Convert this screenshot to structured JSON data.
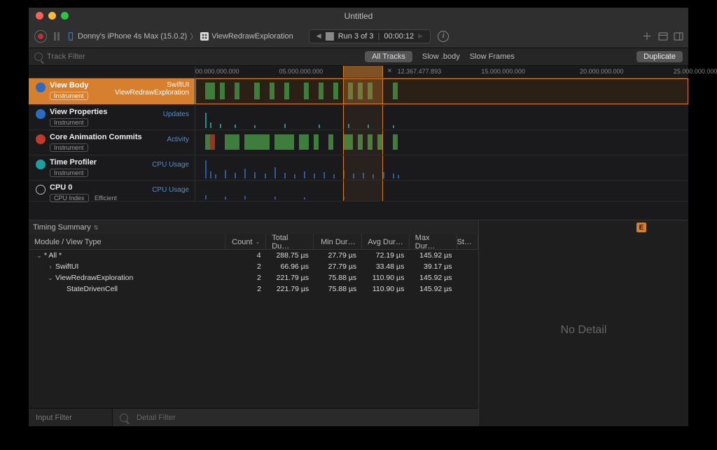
{
  "colors": {
    "window_bg": "#1e1e1e",
    "toolbar_bg": "#2f2f2f",
    "accent": "#d67f2e",
    "link": "#4a90d9",
    "green_bar": "#3f7d3c",
    "blue_spike": "#2e5b9c",
    "teal_spike": "#2e8b8b",
    "traffic_red": "#ff5f57",
    "traffic_yellow": "#febc2e",
    "traffic_green": "#28c840",
    "badge_blue": "#2a6cc4",
    "badge_red": "#c0392b",
    "badge_cyan": "#1aa0a0",
    "badge_white_border": "#bbb"
  },
  "title": "Untitled",
  "breadcrumb": {
    "device": "Donny's iPhone 4s Max (15.0.2)",
    "target": "ViewRedrawExploration"
  },
  "run_pill": {
    "label": "Run 3 of 3",
    "time": "00:00:12"
  },
  "track_filter_placeholder": "Track Filter",
  "segments": {
    "all_tracks": "All Tracks",
    "slow_body": "Slow .body",
    "slow_frames": "Slow Frames"
  },
  "duplicate_label": "Duplicate",
  "ruler": {
    "ticks": [
      {
        "pos_pct": 0,
        "label": "00.000.000.000"
      },
      {
        "pos_pct": 17,
        "label": "05.000.000.000"
      },
      {
        "pos_pct": 41,
        "label": "12.367.477.893"
      },
      {
        "pos_pct": 58,
        "label": "15.000.000.000"
      },
      {
        "pos_pct": 78,
        "label": "20.000.000.000"
      },
      {
        "pos_pct": 97,
        "label": "25.000.000.000"
      }
    ],
    "selection": {
      "left_pct": 30,
      "right_pct": 38
    },
    "close_pos_pct": 39
  },
  "tracks": [
    {
      "id": "view-body",
      "badge_color": "#2a6cc4",
      "title": "View Body",
      "pill": "Instrument",
      "right_top": "SwiftUI",
      "right_bottom": "ViewRedrawExploration",
      "right_bottom_link": false,
      "selected": true,
      "height": 38,
      "bars": [
        {
          "x": 2,
          "w": 2,
          "c": "#3f7d3c"
        },
        {
          "x": 5,
          "w": 1,
          "c": "#3f7d3c"
        },
        {
          "x": 8,
          "w": 1,
          "c": "#3f7d3c"
        },
        {
          "x": 12,
          "w": 1,
          "c": "#3f7d3c"
        },
        {
          "x": 15,
          "w": 1,
          "c": "#3f7d3c"
        },
        {
          "x": 18,
          "w": 1,
          "c": "#3f7d3c"
        },
        {
          "x": 22,
          "w": 1,
          "c": "#3f7d3c"
        },
        {
          "x": 25,
          "w": 1,
          "c": "#3f7d3c"
        },
        {
          "x": 28,
          "w": 1,
          "c": "#3f7d3c"
        },
        {
          "x": 31,
          "w": 1,
          "c": "#3f7d3c"
        },
        {
          "x": 33,
          "w": 1,
          "c": "#3f7d3c"
        },
        {
          "x": 35,
          "w": 1,
          "c": "#3f7d3c"
        },
        {
          "x": 40,
          "w": 1,
          "c": "#3f7d3c"
        }
      ],
      "spikes": []
    },
    {
      "id": "view-properties",
      "badge_color": "#2a6cc4",
      "title": "View Properties",
      "pill": "Instrument",
      "right_top": "",
      "right_bottom": "Updates",
      "right_bottom_link": true,
      "selected": false,
      "height": 36,
      "bars": [],
      "spikes": [
        {
          "x": 2,
          "h": 22,
          "c": "#2e8b8b"
        },
        {
          "x": 3,
          "h": 8,
          "c": "#2e8b8b"
        },
        {
          "x": 5,
          "h": 6,
          "c": "#2e8b8b"
        },
        {
          "x": 8,
          "h": 5,
          "c": "#2e8b8b"
        },
        {
          "x": 12,
          "h": 4,
          "c": "#2e8b8b"
        },
        {
          "x": 18,
          "h": 6,
          "c": "#2e8b8b"
        },
        {
          "x": 25,
          "h": 5,
          "c": "#2e8b8b"
        },
        {
          "x": 31,
          "h": 6,
          "c": "#2e8b8b"
        },
        {
          "x": 35,
          "h": 5,
          "c": "#2e8b8b"
        },
        {
          "x": 40,
          "h": 4,
          "c": "#2e8b8b"
        }
      ]
    },
    {
      "id": "core-animation",
      "badge_color": "#c0392b",
      "title": "Core Animation Commits",
      "pill": "Instrument",
      "right_top": "",
      "right_bottom": "Activity",
      "right_bottom_link": true,
      "selected": false,
      "height": 36,
      "bars": [
        {
          "x": 2,
          "w": 1,
          "c": "#3f7d3c"
        },
        {
          "x": 3,
          "w": 1,
          "c": "#8a3a2a"
        },
        {
          "x": 6,
          "w": 3,
          "c": "#3f7d3c"
        },
        {
          "x": 10,
          "w": 5,
          "c": "#3f7d3c"
        },
        {
          "x": 16,
          "w": 4,
          "c": "#3f7d3c"
        },
        {
          "x": 21,
          "w": 2,
          "c": "#3f7d3c"
        },
        {
          "x": 24,
          "w": 1,
          "c": "#3f7d3c"
        },
        {
          "x": 27,
          "w": 1,
          "c": "#3f7d3c"
        },
        {
          "x": 30,
          "w": 2,
          "c": "#3f7d3c"
        },
        {
          "x": 33,
          "w": 1,
          "c": "#3f7d3c"
        },
        {
          "x": 35,
          "w": 1,
          "c": "#3f7d3c"
        },
        {
          "x": 37,
          "w": 1,
          "c": "#3f7d3c"
        },
        {
          "x": 40,
          "w": 1,
          "c": "#3f7d3c"
        }
      ],
      "spikes": []
    },
    {
      "id": "time-profiler",
      "badge_color": "#1aa0a0",
      "title": "Time Profiler",
      "pill": "Instrument",
      "right_top": "",
      "right_bottom": "CPU Usage",
      "right_bottom_link": true,
      "selected": false,
      "height": 36,
      "bars": [],
      "spikes": [
        {
          "x": 2,
          "h": 26,
          "c": "#2e5b9c"
        },
        {
          "x": 3,
          "h": 10,
          "c": "#2e5b9c"
        },
        {
          "x": 4,
          "h": 6,
          "c": "#2e5b9c"
        },
        {
          "x": 6,
          "h": 12,
          "c": "#2e5b9c"
        },
        {
          "x": 8,
          "h": 8,
          "c": "#2e5b9c"
        },
        {
          "x": 10,
          "h": 14,
          "c": "#2e5b9c"
        },
        {
          "x": 12,
          "h": 9,
          "c": "#2e5b9c"
        },
        {
          "x": 14,
          "h": 7,
          "c": "#2e5b9c"
        },
        {
          "x": 16,
          "h": 16,
          "c": "#2e5b9c"
        },
        {
          "x": 18,
          "h": 8,
          "c": "#2e5b9c"
        },
        {
          "x": 20,
          "h": 6,
          "c": "#2e5b9c"
        },
        {
          "x": 22,
          "h": 10,
          "c": "#2e5b9c"
        },
        {
          "x": 24,
          "h": 7,
          "c": "#2e5b9c"
        },
        {
          "x": 26,
          "h": 9,
          "c": "#2e5b9c"
        },
        {
          "x": 28,
          "h": 6,
          "c": "#2e5b9c"
        },
        {
          "x": 30,
          "h": 12,
          "c": "#2e5b9c"
        },
        {
          "x": 32,
          "h": 7,
          "c": "#2e5b9c"
        },
        {
          "x": 34,
          "h": 8,
          "c": "#2e5b9c"
        },
        {
          "x": 36,
          "h": 6,
          "c": "#2e5b9c"
        },
        {
          "x": 38,
          "h": 9,
          "c": "#2e5b9c"
        },
        {
          "x": 40,
          "h": 7,
          "c": "#2e5b9c"
        },
        {
          "x": 41,
          "h": 5,
          "c": "#2e5b9c"
        }
      ]
    },
    {
      "id": "cpu-0",
      "badge_color": "transparent",
      "badge_border": "#bbb",
      "title": "CPU 0",
      "pill": "CPU Index",
      "pill2": "Efficient",
      "right_top": "",
      "right_bottom": "CPU Usage",
      "right_bottom_link": true,
      "selected": false,
      "height": 30,
      "bars": [],
      "spikes": [
        {
          "x": 2,
          "h": 6,
          "c": "#2e5b9c"
        },
        {
          "x": 6,
          "h": 4,
          "c": "#2e5b9c"
        },
        {
          "x": 10,
          "h": 5,
          "c": "#2e5b9c"
        },
        {
          "x": 16,
          "h": 4,
          "c": "#2e5b9c"
        },
        {
          "x": 22,
          "h": 3,
          "c": "#2e5b9c"
        },
        {
          "x": 30,
          "h": 4,
          "c": "#2e5b9c"
        }
      ]
    }
  ],
  "detail_crumb": "Timing Summary",
  "table": {
    "columns": [
      "Module / View Type",
      "Count",
      "Total Du…",
      "Min Dur…",
      "Avg Dur…",
      "Max Dur…",
      "St…"
    ],
    "sort_col": 1,
    "rows": [
      {
        "indent": 0,
        "disclosure": "down",
        "label": "* All *",
        "count": 4,
        "total": "288.75 µs",
        "min": "27.79 µs",
        "avg": "72.19 µs",
        "max": "145.92 µs"
      },
      {
        "indent": 1,
        "disclosure": "right",
        "label": "SwiftUI",
        "count": 2,
        "total": "66.96 µs",
        "min": "27.79 µs",
        "avg": "33.48 µs",
        "max": "39.17 µs"
      },
      {
        "indent": 1,
        "disclosure": "down",
        "label": "ViewRedrawExploration",
        "count": 2,
        "total": "221.79 µs",
        "min": "75.88 µs",
        "avg": "110.90 µs",
        "max": "145.92 µs"
      },
      {
        "indent": 2,
        "disclosure": "",
        "label": "StateDrivenCell",
        "count": 2,
        "total": "221.79 µs",
        "min": "75.88 µs",
        "avg": "110.90 µs",
        "max": "145.92 µs"
      }
    ]
  },
  "no_detail_text": "No Detail",
  "e_badge": "E",
  "input_filter_placeholder": "Input Filter",
  "detail_filter_placeholder": "Detail Filter"
}
